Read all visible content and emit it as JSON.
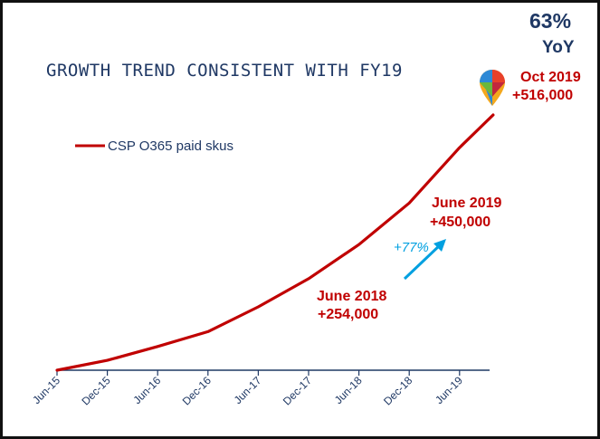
{
  "colors": {
    "series": "#c00000",
    "axis": "#1f3864",
    "text_dark": "#1f3864",
    "accent_arrow": "#00a0e0"
  },
  "chart_data": {
    "type": "line",
    "title": "GROWTH TREND CONSISTENT WITH FY19",
    "legend_position": "top-left",
    "grid": false,
    "x_ticks": [
      "Jun-15",
      "Dec-15",
      "Jun-16",
      "Dec-16",
      "Jun-17",
      "Dec-17",
      "Jun-18",
      "Dec-18",
      "Jun-19"
    ],
    "series": [
      {
        "name": "CSP O365 paid skus",
        "x": [
          "Jun-15",
          "Dec-15",
          "Jun-16",
          "Dec-16",
          "Jun-17",
          "Dec-17",
          "Jun-18",
          "Dec-18",
          "Jun-19",
          "Oct-19"
        ],
        "values": [
          0,
          20000,
          48000,
          78000,
          128000,
          185000,
          254000,
          338000,
          450000,
          516000
        ]
      }
    ],
    "annotations": [
      {
        "line1": "Oct 2019",
        "line2": "+516,000"
      },
      {
        "line1": "June 2019",
        "line2": "+450,000"
      },
      {
        "line1": "June 2018",
        "line2": "+254,000"
      }
    ],
    "growth_label": "+77%",
    "yoy": {
      "value": "63%",
      "label": "YoY"
    }
  },
  "icons": {
    "marker": "location-pin-icon",
    "growth_arrow": "arrow-up-right-icon"
  }
}
